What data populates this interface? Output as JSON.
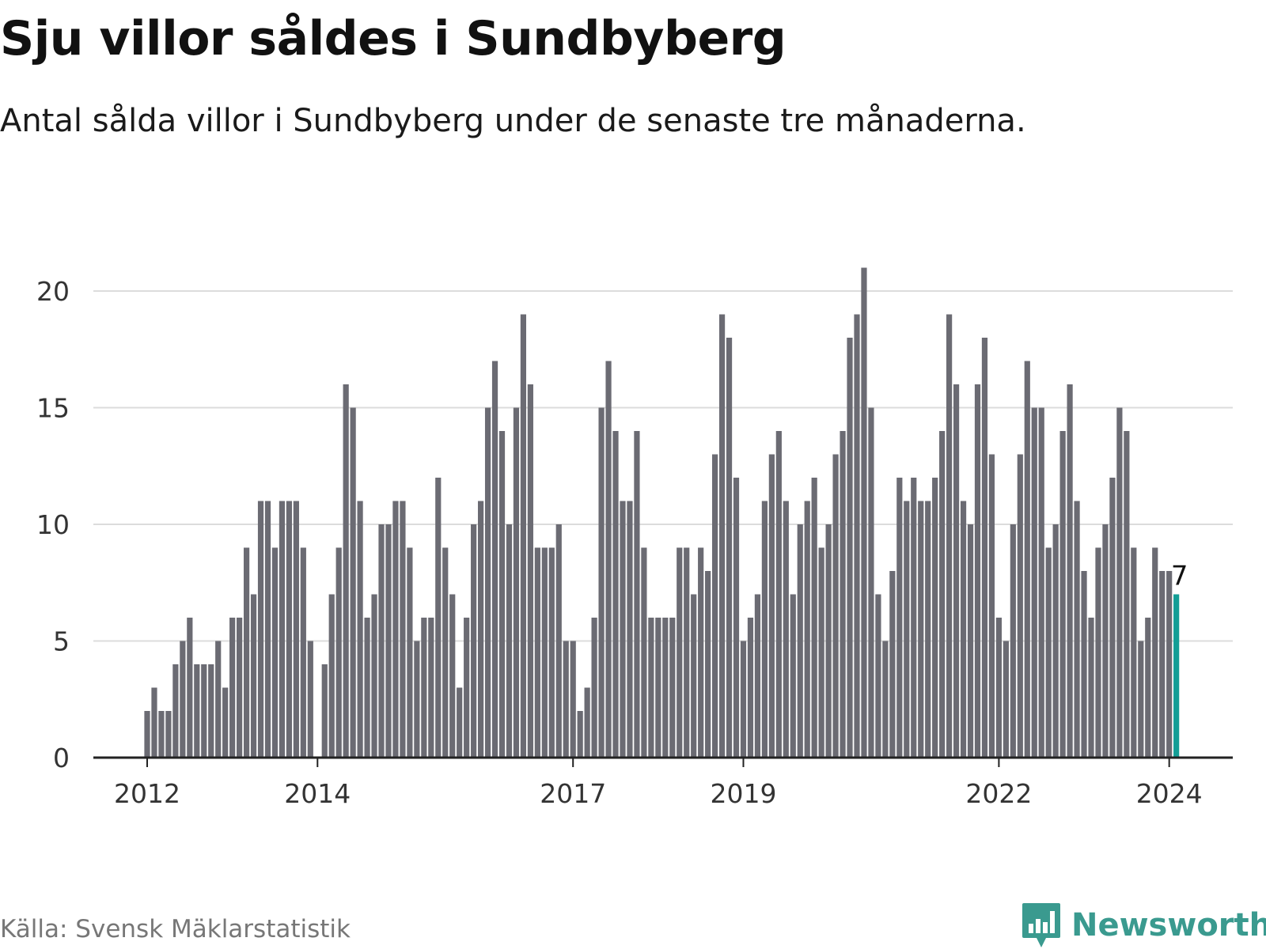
{
  "header": {
    "title": "Sju villor såldes i Sundbyberg",
    "subtitle": "Antal sålda villor i Sundbyberg under de senaste tre månaderna."
  },
  "footer": {
    "source": "Källa: Svensk Mäklarstatistik",
    "brand": "Newsworthy",
    "brand_icon": "newsworthy-logo-icon"
  },
  "colors": {
    "bar": "#6b6b73",
    "highlight": "#139e96",
    "grid": "#dcdcdc",
    "axis": "#222222",
    "brand": "#3a9a8f"
  },
  "chart_data": {
    "type": "bar",
    "title": "Sju villor såldes i Sundbyberg",
    "xlabel": "",
    "ylabel": "",
    "ylim": [
      0,
      21
    ],
    "yticks": [
      0,
      5,
      10,
      15,
      20
    ],
    "grid": true,
    "start_month": "2011-07",
    "x_tick_labels": [
      {
        "label": "2012",
        "index": 0
      },
      {
        "label": "2014",
        "index": 24
      },
      {
        "label": "2017",
        "index": 60
      },
      {
        "label": "2019",
        "index": 84
      },
      {
        "label": "2022",
        "index": 120
      },
      {
        "label": "2024",
        "index": 144
      }
    ],
    "values": [
      2,
      3,
      2,
      2,
      4,
      5,
      6,
      4,
      4,
      4,
      5,
      3,
      6,
      6,
      9,
      7,
      11,
      11,
      9,
      11,
      11,
      11,
      9,
      5,
      null,
      4,
      7,
      9,
      16,
      15,
      11,
      6,
      7,
      10,
      10,
      11,
      11,
      9,
      5,
      6,
      6,
      12,
      9,
      7,
      3,
      6,
      10,
      11,
      15,
      17,
      14,
      10,
      15,
      19,
      16,
      9,
      9,
      9,
      10,
      5,
      5,
      2,
      3,
      6,
      15,
      17,
      14,
      11,
      11,
      14,
      9,
      6,
      6,
      6,
      6,
      9,
      9,
      7,
      9,
      8,
      13,
      19,
      18,
      12,
      5,
      6,
      7,
      11,
      13,
      14,
      11,
      7,
      10,
      11,
      12,
      9,
      10,
      13,
      14,
      18,
      19,
      21,
      15,
      7,
      5,
      8,
      12,
      11,
      12,
      11,
      11,
      12,
      14,
      19,
      16,
      11,
      10,
      16,
      18,
      13,
      6,
      5,
      10,
      13,
      17,
      15,
      15,
      9,
      10,
      14,
      16,
      11,
      8,
      6,
      9,
      10,
      12,
      15,
      14,
      9,
      5,
      6,
      9,
      8,
      8,
      7
    ],
    "highlight_index": 145,
    "highlight_label": "7"
  }
}
